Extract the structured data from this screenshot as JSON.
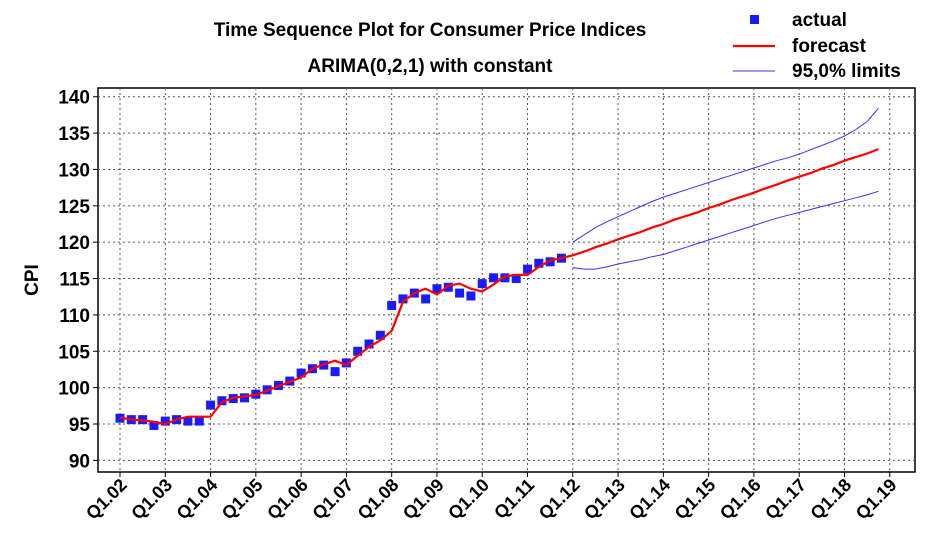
{
  "chart_data": {
    "type": "line",
    "title": "Time Sequence Plot for Consumer Price Indices",
    "subtitle": "ARIMA(0,2,1) with constant",
    "y_label": "CPI",
    "categories": [
      "Q1.02",
      null,
      null,
      null,
      "Q1.03",
      null,
      null,
      null,
      "Q1.04",
      null,
      null,
      null,
      "Q1.05",
      null,
      null,
      null,
      "Q1.06",
      null,
      null,
      null,
      "Q1.07",
      null,
      null,
      null,
      "Q1.08",
      null,
      null,
      null,
      "Q1.09",
      null,
      null,
      null,
      "Q1.10",
      null,
      null,
      null,
      "Q1.11",
      null,
      null,
      null,
      "Q1.12",
      null,
      null,
      null,
      "Q1.13",
      null,
      null,
      null,
      "Q1.14",
      null,
      null,
      null,
      "Q1.15",
      null,
      null,
      null,
      "Q1.16",
      null,
      null,
      null,
      "Q1.17",
      null,
      null,
      null,
      "Q1.18",
      null,
      null,
      null,
      "Q1.19"
    ],
    "ylim": [
      88.4,
      141.2
    ],
    "yticks": [
      90,
      95,
      100,
      105,
      110,
      115,
      120,
      125,
      130,
      135,
      140
    ],
    "grid": true,
    "legend": "top-right",
    "series": [
      {
        "name": "actual",
        "color": "#1a1aff",
        "marker": "square",
        "values": [
          95.8,
          95.6,
          95.6,
          94.8,
          95.4,
          95.6,
          95.4,
          95.4,
          97.6,
          98.2,
          98.5,
          98.6,
          99.1,
          99.7,
          100.3,
          100.9,
          102.0,
          102.6,
          103.1,
          102.2,
          103.4,
          105.0,
          106.0,
          107.2,
          111.3,
          112.2,
          113.0,
          112.2,
          113.6,
          113.8,
          113.0,
          112.6,
          114.3,
          115.1,
          115.1,
          115.0,
          116.3,
          117.1,
          117.3,
          117.8,
          null,
          null,
          null,
          null,
          null,
          null,
          null,
          null,
          null,
          null,
          null,
          null,
          null,
          null,
          null,
          null,
          null,
          null,
          null,
          null,
          null,
          null,
          null,
          null,
          null,
          null,
          null,
          null,
          null
        ]
      },
      {
        "name": "forecast",
        "color": "#ff0000",
        "values": [
          95.9,
          95.6,
          95.5,
          95.3,
          95.0,
          95.6,
          96.0,
          96.0,
          96.0,
          98.0,
          98.6,
          98.8,
          99.0,
          99.6,
          100.2,
          100.8,
          101.4,
          102.6,
          103.2,
          103.7,
          103.1,
          104.4,
          105.6,
          106.5,
          107.8,
          111.8,
          113.0,
          113.6,
          112.8,
          114.0,
          114.3,
          113.6,
          113.2,
          114.2,
          115.3,
          115.5,
          115.5,
          116.6,
          117.5,
          117.8,
          118.2,
          118.7,
          119.3,
          119.8,
          120.4,
          120.9,
          121.4,
          122.0,
          122.5,
          123.1,
          123.6,
          124.1,
          124.7,
          125.2,
          125.8,
          126.3,
          126.8,
          127.4,
          127.9,
          128.5,
          129.0,
          129.5,
          130.1,
          130.6,
          131.2,
          131.7,
          132.2,
          132.8,
          null
        ]
      },
      {
        "name": "95,0% limits",
        "color": "#3333ff",
        "values": [
          null,
          null,
          null,
          null,
          null,
          null,
          null,
          null,
          null,
          null,
          null,
          null,
          null,
          null,
          null,
          null,
          null,
          null,
          null,
          null,
          null,
          null,
          null,
          null,
          null,
          null,
          null,
          null,
          null,
          null,
          null,
          null,
          null,
          null,
          null,
          null,
          null,
          null,
          null,
          null,
          120.0,
          121.0,
          122.0,
          122.8,
          123.5,
          124.2,
          124.9,
          125.6,
          126.2,
          126.7,
          127.2,
          127.7,
          128.2,
          128.7,
          129.2,
          129.7,
          130.2,
          130.7,
          131.2,
          131.6,
          132.1,
          132.7,
          133.3,
          133.9,
          134.6,
          135.5,
          136.6,
          138.4,
          null
        ],
        "lower_values": [
          null,
          null,
          null,
          null,
          null,
          null,
          null,
          null,
          null,
          null,
          null,
          null,
          null,
          null,
          null,
          null,
          null,
          null,
          null,
          null,
          null,
          null,
          null,
          null,
          null,
          null,
          null,
          null,
          null,
          null,
          null,
          null,
          null,
          null,
          null,
          null,
          null,
          null,
          null,
          null,
          116.5,
          116.3,
          116.3,
          116.6,
          117.0,
          117.3,
          117.6,
          118.0,
          118.3,
          118.8,
          119.3,
          119.8,
          120.3,
          120.8,
          121.3,
          121.8,
          122.3,
          122.8,
          123.3,
          123.7,
          124.1,
          124.5,
          124.9,
          125.3,
          125.7,
          126.1,
          126.5,
          127.0,
          null
        ]
      }
    ]
  }
}
